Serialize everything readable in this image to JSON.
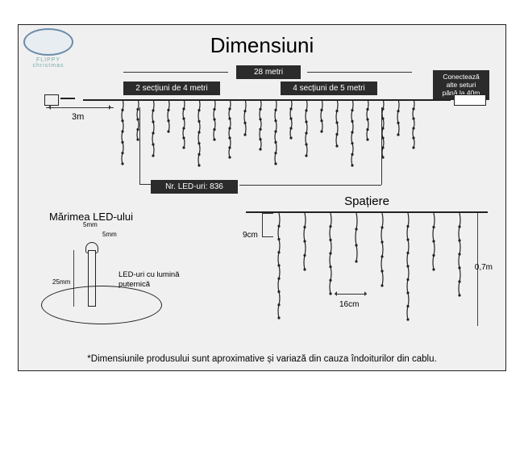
{
  "title": "Dimensiuni",
  "logo_text": "FLIPPY christmas",
  "main": {
    "total_length": "28 metri",
    "section1": "2 secțiuni de 4 metri",
    "section2": "4 secțiuni de 5 metri",
    "lead_cable": "3m",
    "connect_note": "Conectează alte seturi până la 40m",
    "led_count": "Nr. LED-uri: 836",
    "icicle_lengths": [
      80,
      50,
      70,
      40,
      60,
      82,
      50,
      72,
      44,
      62,
      80,
      48,
      70,
      40,
      58,
      82,
      50,
      72,
      44,
      60
    ]
  },
  "led": {
    "title": "Mărimea LED-ului",
    "stem_size": "25mm",
    "top_w": "5mm",
    "top_h": "5mm",
    "note": "LED-uri cu lumină puternică"
  },
  "spacing": {
    "title": "Spațiere",
    "drop_gap": "9cm",
    "height": "0,7m",
    "strand_gap": "16cm",
    "icicle_lengths": [
      130,
      70,
      100,
      60,
      90,
      132,
      70,
      102
    ]
  },
  "disclaimer": "*Dimensiunile produsului sunt aproximative și variază din cauza îndoiturilor din cablu.",
  "colors": {
    "dark": "#2b2b2b",
    "line": "#222",
    "bg": "#f0f0f0"
  }
}
